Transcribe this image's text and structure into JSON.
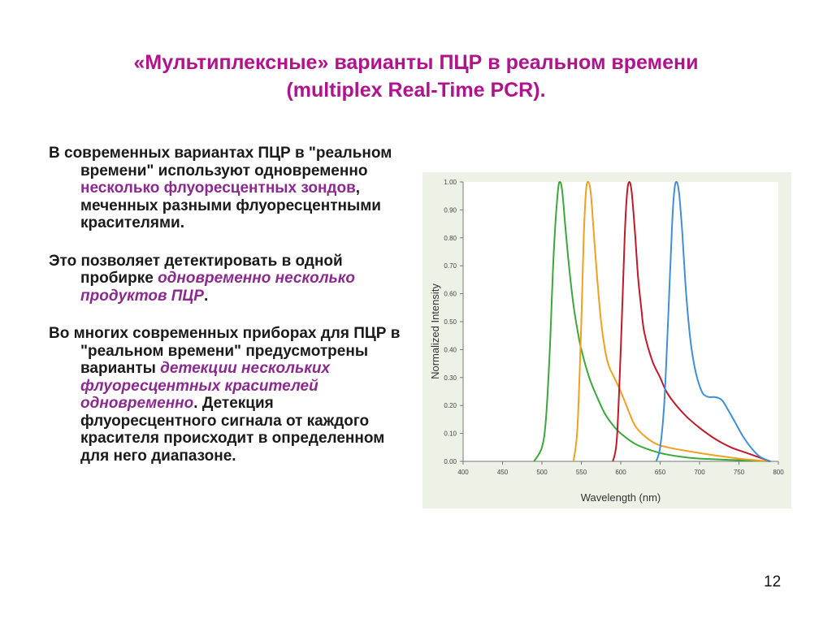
{
  "slide": {
    "title_line1": "«Мультиплексные» варианты ПЦР в реальном времени",
    "title_line2": "(multiplex Real-Time PCR).",
    "page_number": "12"
  },
  "paragraphs": [
    {
      "segments": [
        {
          "text": "В современных вариантах ПЦР в \"реальном времени\" используют одновременно ",
          "style": "normal"
        },
        {
          "text": "несколько флуоресцентных зондов",
          "style": "highlight"
        },
        {
          "text": ", меченных разными флуоресцентными красителями.",
          "style": "normal"
        }
      ]
    },
    {
      "segments": [
        {
          "text": "Это позволяет детектировать в одной пробирке ",
          "style": "normal"
        },
        {
          "text": "одновременно несколько продуктов ПЦР",
          "style": "highlight-italic"
        },
        {
          "text": ".",
          "style": "normal"
        }
      ]
    },
    {
      "segments": [
        {
          "text": "Во многих современных приборах для ПЦР в \"реальном времени\" предусмотрены варианты ",
          "style": "normal"
        },
        {
          "text": "детекции нескольких флуоресцентных красителей одновременно",
          "style": "highlight-italic"
        },
        {
          "text": ". Детекция флуоресцентного сигнала от каждого красителя происходит в определенном для него диапазоне.",
          "style": "normal"
        }
      ]
    }
  ],
  "chart_data": {
    "type": "line",
    "title": "",
    "xlabel": "Wavelength (nm)",
    "ylabel": "Normalized Intensity",
    "xlim": [
      400,
      800
    ],
    "ylim": [
      0,
      1.0
    ],
    "xticks": [
      "400",
      "450",
      "500",
      "550",
      "600",
      "650",
      "700",
      "750",
      "800"
    ],
    "yticks": [
      "0.00",
      "0.10",
      "0.20",
      "0.30",
      "0.40",
      "0.50",
      "0.60",
      "0.70",
      "0.80",
      "0.90",
      "1.00"
    ],
    "grid": false,
    "legend": "none",
    "series": [
      {
        "color": "#3aa83a",
        "x": [
          490,
          500,
          505,
          510,
          515,
          520,
          523,
          526,
          530,
          535,
          540,
          545,
          550,
          560,
          570,
          580,
          590,
          600,
          620,
          650,
          680,
          700,
          740,
          790
        ],
        "y": [
          0.0,
          0.05,
          0.15,
          0.4,
          0.75,
          0.96,
          1.0,
          0.96,
          0.83,
          0.68,
          0.56,
          0.47,
          0.4,
          0.3,
          0.23,
          0.17,
          0.13,
          0.1,
          0.06,
          0.03,
          0.015,
          0.01,
          0.005,
          0.0
        ]
      },
      {
        "color": "#f0a020",
        "x": [
          540,
          545,
          550,
          553,
          556,
          559,
          562,
          565,
          570,
          575,
          580,
          585,
          590,
          600,
          610,
          620,
          640,
          660,
          700,
          750,
          790
        ],
        "y": [
          0.0,
          0.12,
          0.5,
          0.8,
          0.97,
          1.0,
          0.96,
          0.85,
          0.66,
          0.5,
          0.4,
          0.34,
          0.31,
          0.25,
          0.18,
          0.12,
          0.07,
          0.05,
          0.03,
          0.01,
          0.0
        ]
      },
      {
        "color": "#c01a2a",
        "x": [
          590,
          595,
          600,
          605,
          608,
          611,
          614,
          618,
          622,
          626,
          630,
          640,
          650,
          660,
          680,
          700,
          720,
          740,
          760,
          790
        ],
        "y": [
          0.0,
          0.08,
          0.4,
          0.8,
          0.96,
          1.0,
          0.96,
          0.82,
          0.66,
          0.55,
          0.46,
          0.36,
          0.3,
          0.24,
          0.17,
          0.12,
          0.08,
          0.05,
          0.03,
          0.0
        ]
      },
      {
        "color": "#3f8fd6",
        "x": [
          645,
          650,
          655,
          660,
          665,
          668,
          671,
          674,
          678,
          682,
          686,
          690,
          695,
          700,
          705,
          712,
          720,
          728,
          735,
          745,
          755,
          765,
          775,
          785,
          790
        ],
        "y": [
          0.0,
          0.05,
          0.2,
          0.5,
          0.84,
          0.97,
          1.0,
          0.96,
          0.82,
          0.64,
          0.5,
          0.4,
          0.32,
          0.27,
          0.24,
          0.23,
          0.23,
          0.22,
          0.19,
          0.14,
          0.09,
          0.05,
          0.02,
          0.005,
          0.0
        ]
      }
    ]
  }
}
